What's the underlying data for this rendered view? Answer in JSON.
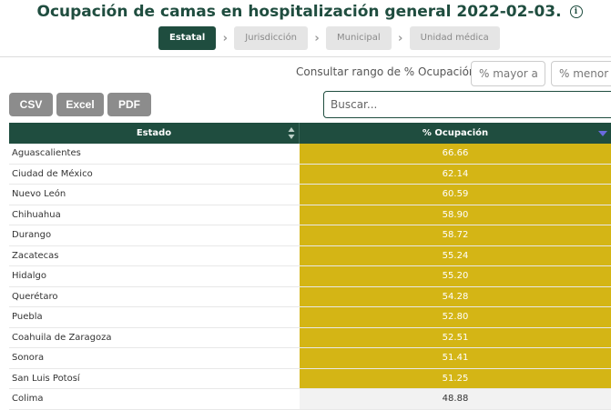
{
  "header": {
    "title": "Ocupación de camas en hospitalización general",
    "date": "2022-02-03.",
    "info_icon": "info-circle-icon"
  },
  "levels": [
    {
      "label": "Estatal",
      "active": true
    },
    {
      "label": "Jurisdicción",
      "active": false
    },
    {
      "label": "Municipal",
      "active": false
    },
    {
      "label": "Unidad médica",
      "active": false
    }
  ],
  "range": {
    "label": "Consultar rango de % Ocupación:",
    "min_placeholder": "% mayor a",
    "max_placeholder": "% menor a"
  },
  "export": {
    "csv": "CSV",
    "excel": "Excel",
    "pdf": "PDF"
  },
  "search": {
    "placeholder": "Buscar..."
  },
  "table": {
    "columns": [
      "Estado",
      "% Ocupación"
    ],
    "rows": [
      {
        "estado": "Aguascalientes",
        "ocupacion": "66.66",
        "highlight": true
      },
      {
        "estado": "Ciudad de México",
        "ocupacion": "62.14",
        "highlight": true
      },
      {
        "estado": "Nuevo León",
        "ocupacion": "60.59",
        "highlight": true
      },
      {
        "estado": "Chihuahua",
        "ocupacion": "58.90",
        "highlight": true
      },
      {
        "estado": "Durango",
        "ocupacion": "58.72",
        "highlight": true
      },
      {
        "estado": "Zacatecas",
        "ocupacion": "55.24",
        "highlight": true
      },
      {
        "estado": "Hidalgo",
        "ocupacion": "55.20",
        "highlight": true
      },
      {
        "estado": "Querétaro",
        "ocupacion": "54.28",
        "highlight": true
      },
      {
        "estado": "Puebla",
        "ocupacion": "52.80",
        "highlight": true
      },
      {
        "estado": "Coahuila de Zaragoza",
        "ocupacion": "52.51",
        "highlight": true
      },
      {
        "estado": "Sonora",
        "ocupacion": "51.41",
        "highlight": true
      },
      {
        "estado": "San Luis Potosí",
        "ocupacion": "51.25",
        "highlight": true
      },
      {
        "estado": "Colima",
        "ocupacion": "48.88",
        "highlight": false
      }
    ]
  },
  "colors": {
    "primary": "#1f4d3f",
    "highlight": "#d4b515",
    "button_gray": "#8c8c8c"
  }
}
